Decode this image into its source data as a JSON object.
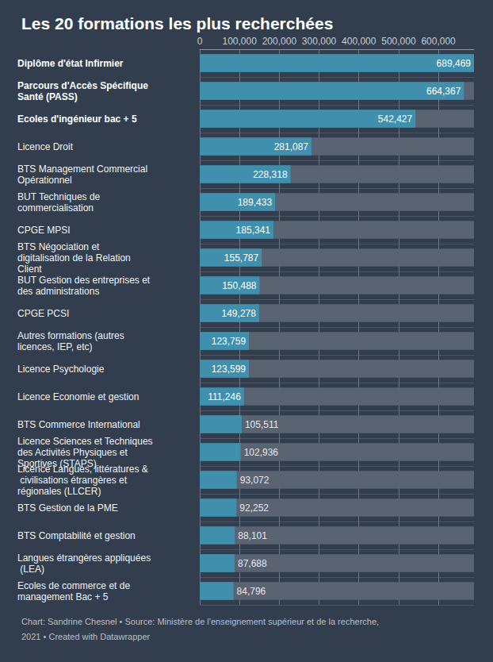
{
  "chart_data": {
    "type": "bar",
    "orientation": "horizontal",
    "title": "Les 20 formations les plus recherchées",
    "source": "Chart: Sandrine Chesnel • Source: Ministère de l'enseignement supérieur et de la recherche, 2021 • Created with Datawrapper",
    "categories": [
      "Diplôme d'état Infirmier",
      "Parcours d'Accès Spécifique Santé (PASS)",
      "Ecoles d'ingénieur bac + 5",
      "Licence Droit",
      "BTS Management Commercial Opérationnel",
      "BUT Techniques de commercialisation",
      "CPGE MPSI",
      "BTS Négociation et digitalisation de la Relation Client",
      "BUT Gestion des entreprises et des administrations",
      "CPGE PCSI",
      "Autres formations (autres licences, IEP, etc)",
      "Licence Psychologie",
      "Licence Economie et gestion",
      "BTS Commerce International",
      "Licence Sciences et Techniques des Activités Physiques et Sportives (STAPS)",
      "Licence Langues, littératures & civilisations étrangères et régionales (LLCER)",
      "BTS Gestion de la PME",
      "BTS Comptabilité et gestion",
      "Langues étrangères appliquées (LEA)",
      "Ecoles de commerce et de management Bac + 5"
    ],
    "values": [
      689469,
      664367,
      542427,
      281087,
      228318,
      189433,
      185341,
      155787,
      150488,
      149278,
      123759,
      123599,
      111246,
      105511,
      102936,
      93072,
      92252,
      88101,
      87688,
      84796
    ],
    "value_labels": [
      "689,469",
      "664,367",
      "542,427",
      "281,087",
      "228,318",
      "189,433",
      "185,341",
      "155,787",
      "150,488",
      "149,278",
      "123,759",
      "123,599",
      "111,246",
      "105,511",
      "102,936",
      "93,072",
      "92,252",
      "88,101",
      "87,688",
      "84,796"
    ],
    "color": "#3f8fad",
    "xlim": [
      0,
      689469
    ],
    "xticks": [
      0,
      {
        "value": 100000,
        "label": "100,000"
      },
      {
        "value": 200000,
        "label": "200,000"
      },
      {
        "value": 300000,
        "label": "300,000"
      },
      {
        "value": 400000,
        "label": "400,000"
      },
      {
        "value": 500000,
        "label": "500,000"
      },
      {
        "value": 600000,
        "label": "600,000"
      }
    ],
    "grid": true,
    "data_labels": true
  }
}
